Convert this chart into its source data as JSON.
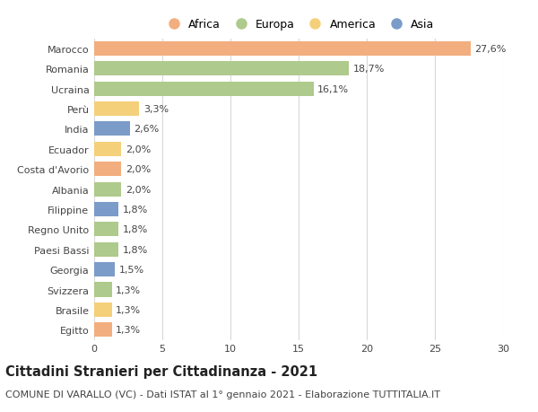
{
  "categories": [
    "Marocco",
    "Romania",
    "Ucraina",
    "Perù",
    "India",
    "Ecuador",
    "Costa d'Avorio",
    "Albania",
    "Filippine",
    "Regno Unito",
    "Paesi Bassi",
    "Georgia",
    "Svizzera",
    "Brasile",
    "Egitto"
  ],
  "values": [
    27.6,
    18.7,
    16.1,
    3.3,
    2.6,
    2.0,
    2.0,
    2.0,
    1.8,
    1.8,
    1.8,
    1.5,
    1.3,
    1.3,
    1.3
  ],
  "labels": [
    "27,6%",
    "18,7%",
    "16,1%",
    "3,3%",
    "2,6%",
    "2,0%",
    "2,0%",
    "2,0%",
    "1,8%",
    "1,8%",
    "1,8%",
    "1,5%",
    "1,3%",
    "1,3%",
    "1,3%"
  ],
  "continents": [
    "Africa",
    "Europa",
    "Europa",
    "America",
    "Asia",
    "America",
    "Africa",
    "Europa",
    "Asia",
    "Europa",
    "Europa",
    "Asia",
    "Europa",
    "America",
    "Africa"
  ],
  "colors": {
    "Africa": "#F2AE7E",
    "Europa": "#AECA8C",
    "America": "#F5D07A",
    "Asia": "#7B9CC8"
  },
  "legend_order": [
    "Africa",
    "Europa",
    "America",
    "Asia"
  ],
  "title": "Cittadini Stranieri per Cittadinanza - 2021",
  "subtitle": "COMUNE DI VARALLO (VC) - Dati ISTAT al 1° gennaio 2021 - Elaborazione TUTTITALIA.IT",
  "xlim": [
    0,
    30
  ],
  "xticks": [
    0,
    5,
    10,
    15,
    20,
    25,
    30
  ],
  "bg_color": "#FFFFFF",
  "grid_color": "#D8D8D8",
  "bar_height": 0.72,
  "title_fontsize": 10.5,
  "subtitle_fontsize": 8,
  "tick_fontsize": 8,
  "label_fontsize": 8,
  "legend_fontsize": 9
}
